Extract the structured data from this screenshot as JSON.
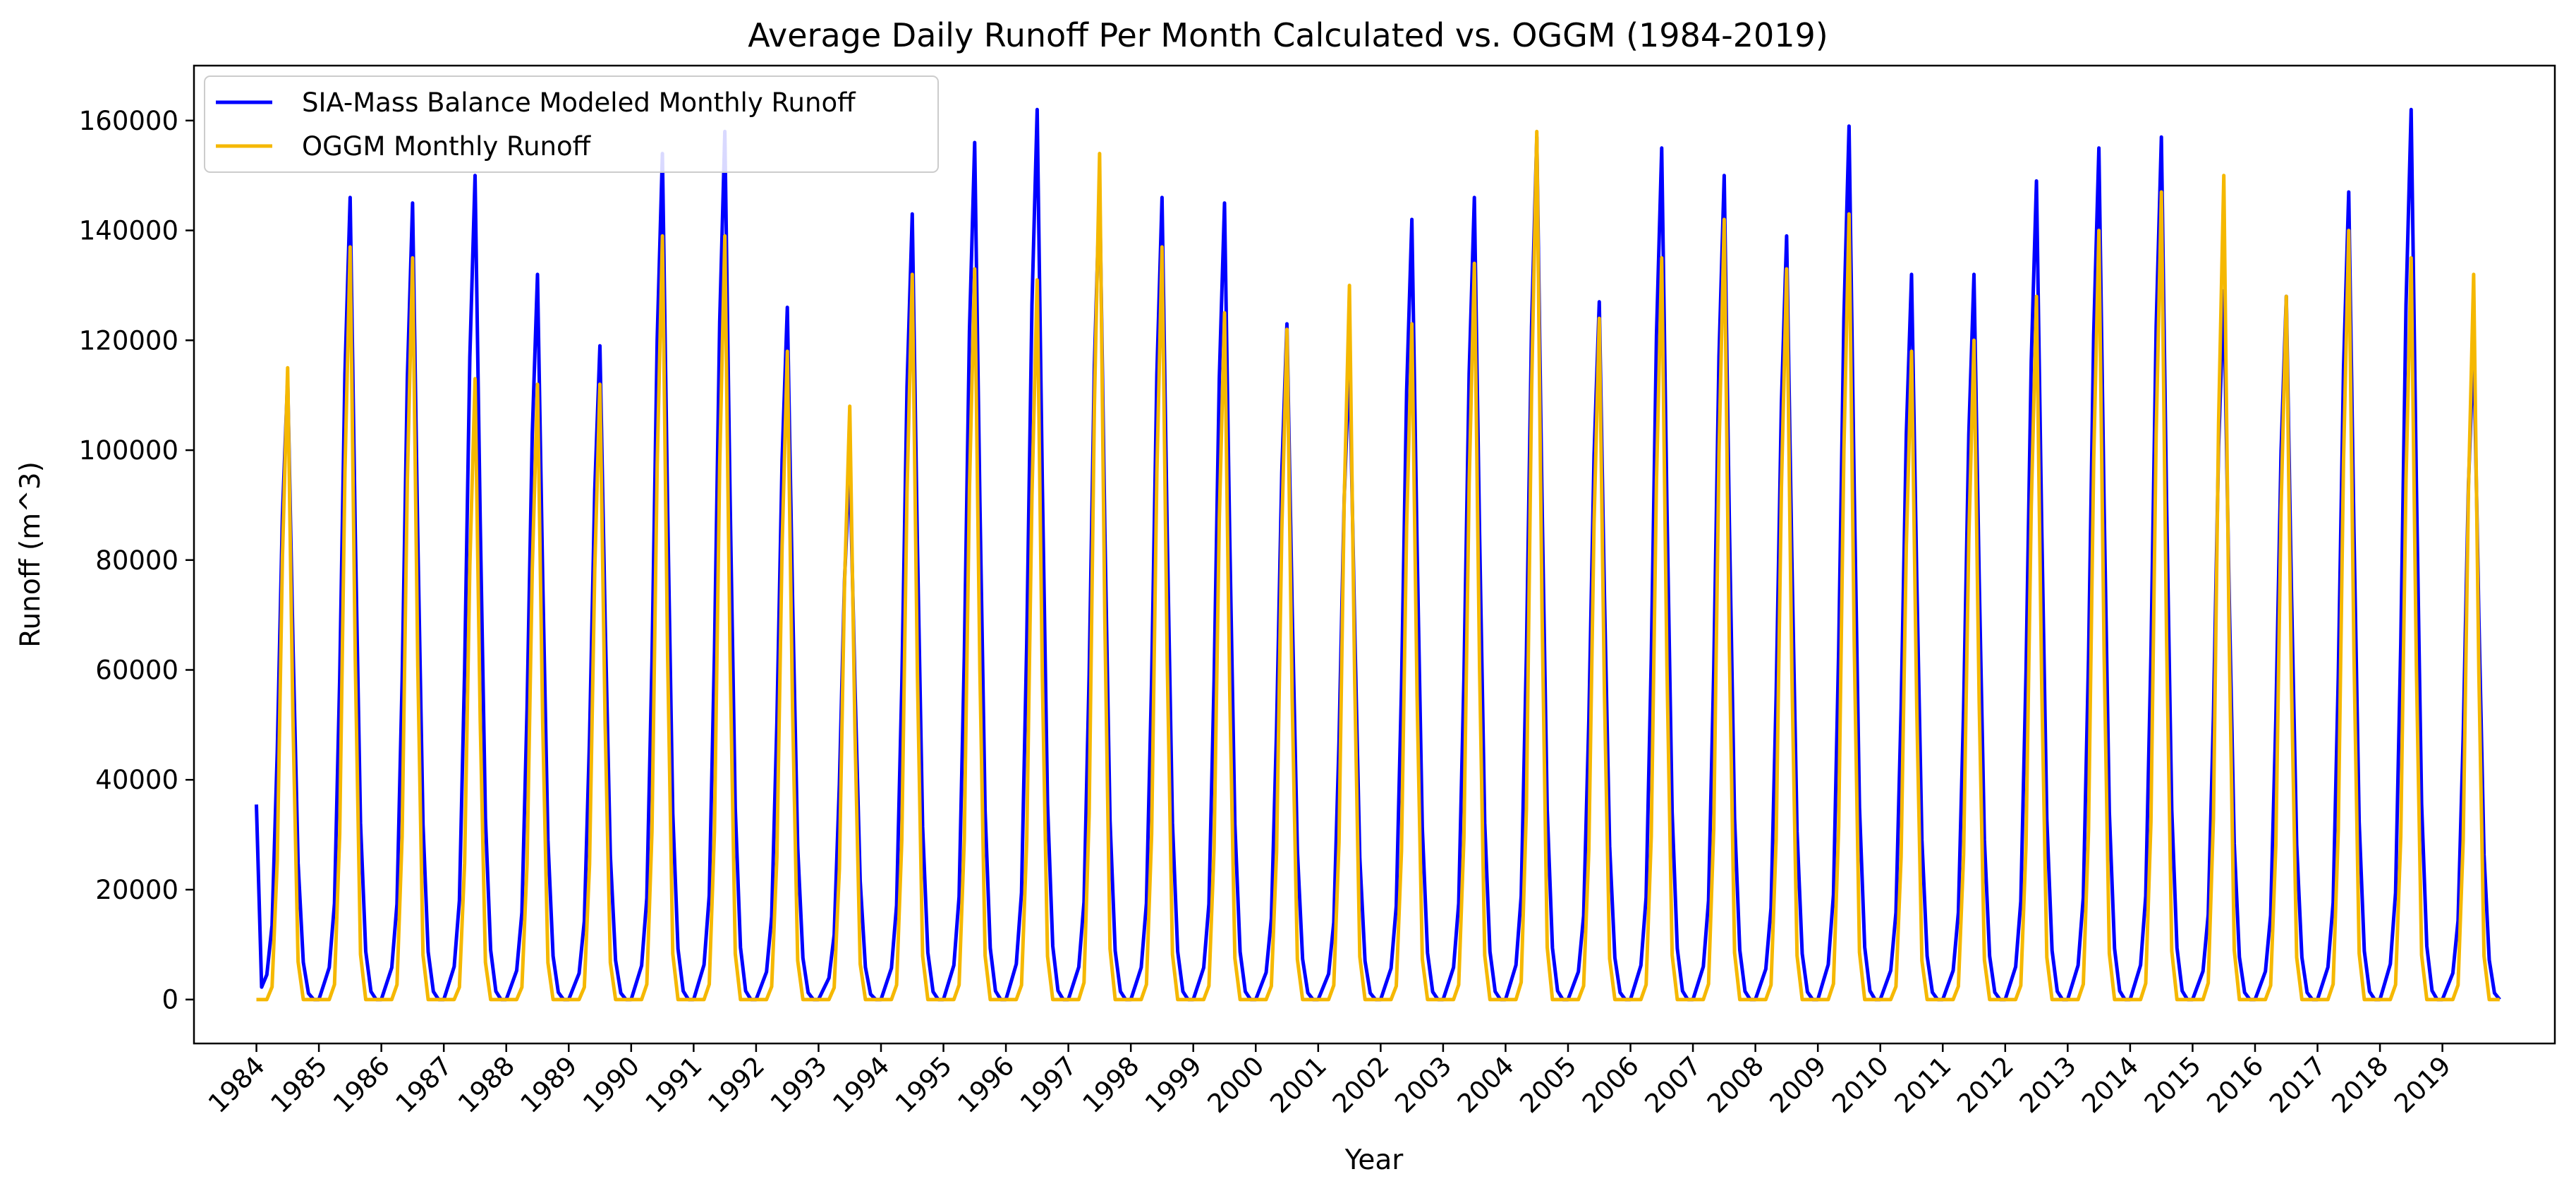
{
  "chart_data": {
    "type": "line",
    "title": "Average Daily Runoff Per Month Calculated vs. OGGM (1984-2019)",
    "xlabel": "Year",
    "ylabel": "Runoff (m^3)",
    "x_ticks": [
      "1984",
      "1985",
      "1986",
      "1987",
      "1988",
      "1989",
      "1990",
      "1991",
      "1992",
      "1993",
      "1994",
      "1995",
      "1996",
      "1997",
      "1998",
      "1999",
      "2000",
      "2001",
      "2002",
      "2003",
      "2004",
      "2005",
      "2006",
      "2007",
      "2008",
      "2009",
      "2010",
      "2011",
      "2012",
      "2013",
      "2014",
      "2015",
      "2016",
      "2017",
      "2018",
      "2019"
    ],
    "y_ticks": [
      0,
      20000,
      40000,
      60000,
      80000,
      100000,
      120000,
      140000,
      160000
    ],
    "xlim": [
      1983.0,
      2020.8
    ],
    "ylim": [
      -8000,
      170000
    ],
    "legend_position": "top-left",
    "grid": false,
    "series": [
      {
        "name": "SIA-Mass Balance Modeled Monthly Runoff",
        "color": "#0000ff",
        "peaks": [
          113000,
          146000,
          145000,
          150000,
          132000,
          119000,
          154000,
          158000,
          126000,
          98000,
          143000,
          156000,
          162000,
          148000,
          146000,
          145000,
          123000,
          117000,
          142000,
          146000,
          157000,
          127000,
          155000,
          150000,
          139000,
          159000,
          132000,
          132000,
          149000,
          155000,
          157000,
          129000,
          128000,
          147000,
          162000,
          120000
        ]
      },
      {
        "name": "OGGM Monthly Runoff",
        "color": "#f5b800",
        "peaks": [
          115000,
          137000,
          135000,
          113000,
          112000,
          112000,
          139000,
          139000,
          118000,
          108000,
          132000,
          133000,
          131000,
          154000,
          137000,
          125000,
          122000,
          130000,
          123000,
          134000,
          158000,
          124000,
          135000,
          142000,
          133000,
          143000,
          118000,
          120000,
          128000,
          140000,
          147000,
          150000,
          128000,
          140000,
          135000,
          132000
        ]
      }
    ]
  }
}
